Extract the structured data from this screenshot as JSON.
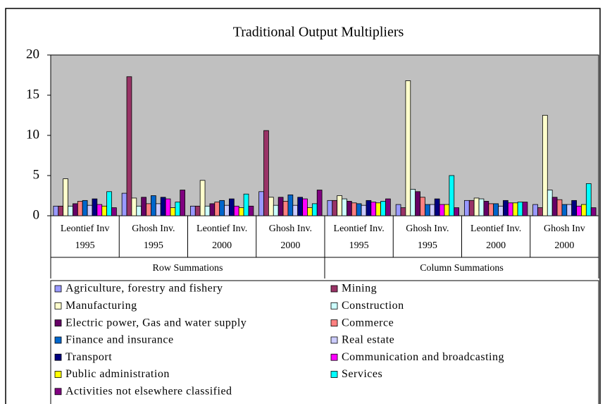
{
  "chart_data": {
    "type": "bar",
    "title": "Traditional Output Multipliers",
    "categories": [
      [
        "Leontief Inv",
        "1995"
      ],
      [
        "Ghosh Inv.",
        "1995"
      ],
      [
        "Leontief Inv.",
        "2000"
      ],
      [
        "Ghosh Inv.",
        "2000"
      ],
      [
        "Leontief Inv.",
        "1995"
      ],
      [
        "Ghosh Inv.",
        "1995"
      ],
      [
        "Leontief Inv.",
        "2000"
      ],
      [
        "Ghosh Inv",
        "2000"
      ]
    ],
    "groups": [
      "Row Summations",
      "Column Summations"
    ],
    "ylim": [
      0,
      20
    ],
    "yticks": [
      0,
      5,
      10,
      15,
      20
    ],
    "series": [
      {
        "name": "Agriculture, forestry and fishery",
        "color": "#9999FF",
        "values": [
          1.2,
          2.8,
          1.2,
          3.0,
          1.9,
          1.4,
          1.9,
          1.4
        ]
      },
      {
        "name": "Mining",
        "color": "#993366",
        "values": [
          1.2,
          17.3,
          1.2,
          10.6,
          1.9,
          1.0,
          1.9,
          1.0
        ]
      },
      {
        "name": "Manufacturing",
        "color": "#FFFFCC",
        "values": [
          4.6,
          2.2,
          4.4,
          2.3,
          2.5,
          16.8,
          2.2,
          12.5
        ]
      },
      {
        "name": "Construction",
        "color": "#CCFFFF",
        "values": [
          1.2,
          1.2,
          1.2,
          1.3,
          2.1,
          3.3,
          2.1,
          3.2
        ]
      },
      {
        "name": "Electric power, Gas and water supply",
        "color": "#660066",
        "values": [
          1.5,
          2.3,
          1.5,
          2.3,
          1.8,
          3.0,
          1.8,
          2.3
        ]
      },
      {
        "name": "Commerce",
        "color": "#FF8080",
        "values": [
          1.8,
          1.5,
          1.7,
          1.8,
          1.6,
          2.3,
          1.5,
          2.0
        ]
      },
      {
        "name": "Finance and insurance",
        "color": "#0066CC",
        "values": [
          1.9,
          2.5,
          1.9,
          2.6,
          1.5,
          1.4,
          1.5,
          1.4
        ]
      },
      {
        "name": "Real estate",
        "color": "#CCCCFF",
        "values": [
          1.3,
          1.5,
          1.3,
          1.3,
          1.3,
          1.4,
          1.2,
          1.4
        ]
      },
      {
        "name": "Transport",
        "color": "#000080",
        "values": [
          2.1,
          2.3,
          2.1,
          2.3,
          1.9,
          2.1,
          1.9,
          1.9
        ]
      },
      {
        "name": "Communication and broadcasting",
        "color": "#FF00FF",
        "values": [
          1.4,
          2.1,
          1.2,
          2.1,
          1.7,
          1.4,
          1.6,
          1.2
        ]
      },
      {
        "name": "Public administration",
        "color": "#FFFF00",
        "values": [
          1.2,
          1.0,
          1.0,
          1.0,
          1.6,
          1.4,
          1.6,
          1.4
        ]
      },
      {
        "name": "Services",
        "color": "#00FFFF",
        "values": [
          3.0,
          1.7,
          2.7,
          1.5,
          1.8,
          5.0,
          1.7,
          4.0
        ]
      },
      {
        "name": "Activities not elsewhere classified",
        "color": "#800080",
        "values": [
          1.0,
          3.2,
          1.2,
          3.2,
          2.1,
          1.0,
          1.7,
          1.0
        ]
      }
    ]
  }
}
